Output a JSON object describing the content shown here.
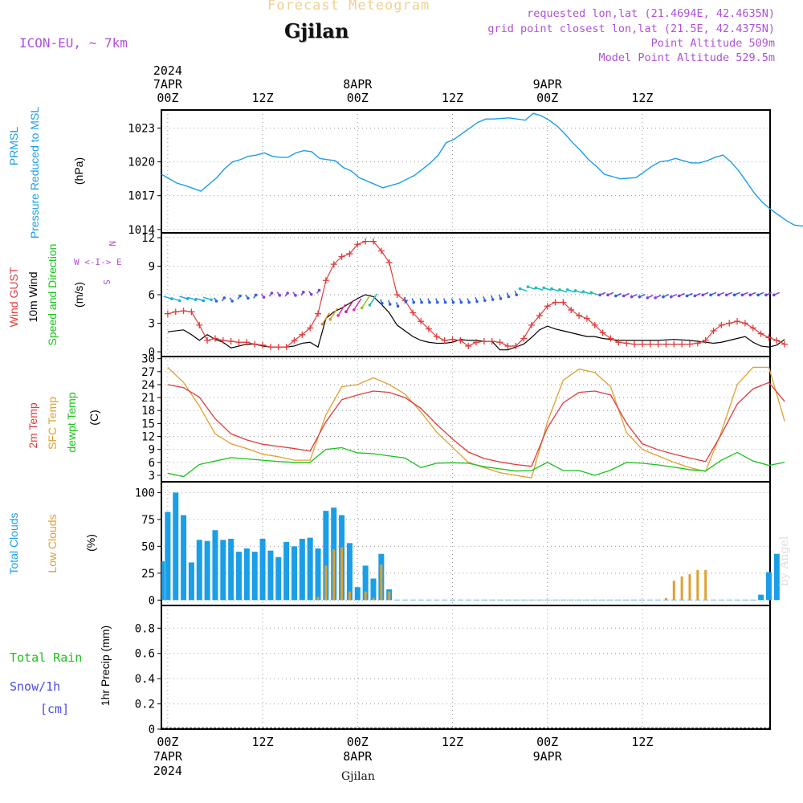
{
  "header": {
    "product": "Forecast Meteogram",
    "location": "Gjilan",
    "model": "ICON-EU, ~ 7km",
    "requested": "requested lon,lat (21.4694E, 42.4635N)",
    "gridpoint": "grid point closest lon,lat (21.5E, 42.4375N)",
    "point_alt": "Point Altitude 509m",
    "model_alt": "Model Point Altitude 529.5m",
    "footer_location": "Gjilan",
    "credit": "by Angel"
  },
  "colors": {
    "blue": "#1a9ee8",
    "red": "#e23b3b",
    "orange": "#e0a030",
    "green": "#19c219",
    "purple": "#b050d8",
    "snowblue": "#4a4ae8",
    "black": "#000000"
  },
  "chart_data": [
    {
      "type": "line",
      "title": "PRMSL Pressure Reduced to MSL",
      "ylabel": "(hPa)",
      "side_labels": [
        "PRMSL",
        "Pressure Reduced to MSL"
      ],
      "ylim": [
        1013.7,
        1024.6
      ],
      "yticks": [
        1014,
        1017,
        1020,
        1023
      ],
      "x_hours": [
        0,
        2,
        3,
        5,
        7,
        8,
        9,
        10,
        11,
        12,
        13,
        14,
        15,
        16,
        17,
        18,
        19,
        20,
        21,
        22,
        23,
        24,
        25,
        26,
        28,
        30,
        32,
        34,
        35,
        36,
        37,
        38,
        39,
        40,
        41,
        42,
        44,
        46,
        47,
        48,
        49,
        50,
        51,
        52,
        53,
        54,
        55,
        56,
        58,
        60,
        62,
        63,
        64,
        65,
        66,
        67,
        68,
        69,
        70,
        71,
        72,
        73,
        74,
        75,
        76,
        77
      ],
      "values": [
        1018.9,
        1018.1,
        1017.9,
        1017.4,
        1018.6,
        1019.4,
        1020.0,
        1020.2,
        1020.5,
        1020.6,
        1020.8,
        1020.5,
        1020.4,
        1020.4,
        1020.8,
        1021.0,
        1020.9,
        1020.3,
        1020.2,
        1020.1,
        1019.5,
        1019.2,
        1018.6,
        1018.3,
        1017.7,
        1018.1,
        1018.8,
        1019.9,
        1020.6,
        1021.7,
        1022.0,
        1022.5,
        1023.0,
        1023.5,
        1023.8,
        1023.8,
        1023.9,
        1023.7,
        1024.3,
        1024.1,
        1023.7,
        1023.2,
        1022.5,
        1021.7,
        1021.0,
        1020.2,
        1019.6,
        1018.9,
        1018.5,
        1018.6,
        1019.6,
        1020.0,
        1020.1,
        1020.3,
        1020.1,
        1019.9,
        1019.9,
        1020.1,
        1020.4,
        1020.6,
        1020.0,
        1019.2,
        1018.2,
        1017.2,
        1016.4,
        1015.8
      ],
      "tail": [
        1015.3,
        1014.8,
        1014.4,
        1014.3,
        1014.5
      ]
    },
    {
      "type": "line",
      "title": "Wind GUST / 10m Wind Speed and Direction",
      "ylabel": "(m/s)",
      "side_labels": [
        "Wind GUST",
        "10m Wind",
        "Speed and Direction"
      ],
      "compass": [
        "N",
        "W <-I-> E",
        "S"
      ],
      "ylim": [
        -0.5,
        12.5
      ],
      "yticks": [
        0,
        3,
        6,
        9,
        12
      ],
      "gust_hours": [
        0,
        1,
        2,
        3,
        4,
        5,
        6,
        7,
        8,
        9,
        10,
        11,
        12,
        13,
        14,
        15,
        16,
        17,
        18,
        19,
        20,
        21,
        22,
        23,
        24,
        25,
        26,
        27,
        28,
        29,
        30,
        31,
        32,
        33,
        34,
        35,
        36,
        37,
        38,
        39,
        40,
        41,
        42,
        43,
        44,
        45,
        46,
        47,
        48,
        49,
        50,
        51,
        52,
        53,
        54,
        55,
        56,
        57,
        58,
        59,
        60,
        61,
        62,
        63,
        64,
        65,
        66,
        67,
        68,
        69,
        70,
        71,
        72,
        73,
        74,
        75,
        76,
        77,
        78
      ],
      "gust": [
        4.0,
        4.2,
        4.3,
        4.2,
        2.8,
        1.2,
        1.4,
        1.2,
        1.1,
        1.0,
        1.0,
        0.8,
        0.7,
        0.5,
        0.5,
        0.5,
        1.2,
        1.8,
        2.5,
        4.0,
        7.5,
        9.2,
        10.0,
        10.3,
        11.3,
        11.6,
        11.6,
        10.6,
        9.4,
        6.0,
        5.4,
        4.1,
        3.2,
        2.4,
        1.6,
        1.2,
        1.3,
        1.2,
        0.6,
        1.0,
        1.1,
        1.1,
        1.0,
        0.6,
        0.6,
        1.4,
        2.8,
        3.8,
        4.8,
        5.2,
        5.2,
        4.4,
        3.8,
        3.5,
        2.8,
        2.0,
        1.4,
        1.0,
        0.9,
        0.8,
        0.8,
        0.8,
        0.8,
        0.8,
        0.8,
        0.8,
        0.8,
        0.9,
        1.2,
        2.2,
        2.8,
        3.0,
        3.2,
        3.0,
        2.5,
        1.9,
        1.5,
        1.2,
        0.8
      ],
      "wind_hours": [
        0,
        2,
        3,
        4,
        5,
        6,
        7,
        8,
        9,
        10,
        11,
        12,
        13,
        14,
        15,
        16,
        17,
        18,
        19,
        20,
        21,
        22,
        23,
        24,
        25,
        26,
        27,
        28,
        29,
        30,
        31,
        32,
        33,
        34,
        35,
        36,
        37,
        38,
        39,
        40,
        41,
        42,
        43,
        44,
        45,
        46,
        47,
        48,
        49,
        50,
        51,
        52,
        53,
        54,
        55,
        56,
        57,
        58,
        60,
        62,
        64,
        66,
        68,
        69,
        70,
        71,
        72,
        73,
        74,
        75,
        76,
        77,
        78
      ],
      "wind": [
        2.1,
        2.3,
        1.8,
        1.2,
        1.8,
        1.3,
        1.0,
        0.4,
        0.6,
        0.8,
        0.8,
        0.6,
        0.5,
        0.5,
        0.5,
        0.6,
        0.9,
        1.0,
        0.5,
        3.5,
        4.2,
        4.6,
        5.1,
        5.6,
        6.0,
        5.8,
        5.0,
        4.1,
        2.8,
        2.2,
        1.6,
        1.2,
        1.0,
        0.9,
        0.9,
        1.0,
        1.3,
        1.2,
        1.2,
        1.1,
        1.1,
        0.2,
        0.2,
        0.5,
        0.8,
        1.5,
        2.3,
        2.7,
        2.4,
        2.2,
        2.0,
        1.8,
        1.6,
        1.6,
        1.4,
        1.3,
        1.2,
        1.2,
        1.2,
        1.2,
        1.3,
        1.2,
        1.0,
        0.9,
        1.0,
        1.2,
        1.4,
        1.6,
        1.0,
        0.6,
        0.5,
        0.7,
        1.3
      ],
      "arrow_speed": [
        5.7,
        5.5,
        5.7,
        5.6,
        5.5,
        5.6,
        5.5,
        5.5,
        5.5,
        5.7,
        5.8,
        5.8,
        5.9,
        6.0,
        6.1,
        6.0,
        6.1,
        6.1,
        6.2,
        6.3,
        3.5,
        4.0,
        4.4,
        4.8,
        5.0,
        5.2,
        5.5,
        5.3,
        5.2,
        5.0,
        5.5,
        5.4,
        5.4,
        5.4,
        5.4,
        5.4,
        5.4,
        5.4,
        5.4,
        5.5,
        5.6,
        5.7,
        5.8,
        6.0,
        6.2,
        6.5,
        6.7,
        6.6,
        6.6,
        6.5,
        6.4,
        6.4,
        6.3,
        6.2,
        6.1,
        6.1,
        6.1,
        6.0,
        6.0,
        5.9,
        5.9,
        5.8,
        5.8,
        5.9,
        5.9,
        6.0,
        6.0,
        6.0,
        6.1,
        6.1,
        6.1,
        6.1,
        6.1,
        6.1,
        6.1,
        6.1,
        6.1,
        6.1
      ]
    },
    {
      "type": "line",
      "title": "2m Temp / SFC Temp / dewpt Temp",
      "ylabel": "(C)",
      "side_labels": [
        "2m Temp",
        "SFC Temp",
        "dewpt Temp"
      ],
      "ylim": [
        1.5,
        30.5
      ],
      "yticks": [
        3,
        6,
        9,
        12,
        15,
        18,
        21,
        24,
        27,
        30
      ],
      "x_hours": [
        0,
        2,
        4,
        6,
        8,
        10,
        12,
        14,
        16,
        18,
        20,
        22,
        24,
        26,
        28,
        30,
        32,
        34,
        36,
        38,
        40,
        42,
        44,
        46,
        48,
        50,
        52,
        54,
        56,
        58,
        60,
        62,
        64,
        66,
        68,
        70,
        72,
        74,
        76,
        78
      ],
      "t2m": [
        24.0,
        23.3,
        21.1,
        16.1,
        12.6,
        11.2,
        10.2,
        9.7,
        9.2,
        8.6,
        15.4,
        20.5,
        21.6,
        22.5,
        22.2,
        21.0,
        18.5,
        14.8,
        11.4,
        8.4,
        6.9,
        6.1,
        5.5,
        5.1,
        14.0,
        19.8,
        22.2,
        22.5,
        21.6,
        15.1,
        10.3,
        8.9,
        7.9,
        7.0,
        6.2,
        12.5,
        19.5,
        23.0,
        24.5,
        20.1
      ],
      "tsfc": [
        28.0,
        24.5,
        19.0,
        12.6,
        10.3,
        9.2,
        7.9,
        7.3,
        6.5,
        6.5,
        17.0,
        23.5,
        24.0,
        25.6,
        24.0,
        21.8,
        17.7,
        13.0,
        9.5,
        6.0,
        4.8,
        3.6,
        3.0,
        2.4,
        15.3,
        25.0,
        27.6,
        26.8,
        23.5,
        12.9,
        9.0,
        7.5,
        6.0,
        4.8,
        3.9,
        13.1,
        24.0,
        28.0,
        28.0,
        15.5
      ],
      "tdew": [
        3.5,
        2.7,
        5.5,
        6.3,
        7.1,
        6.8,
        6.5,
        6.2,
        6.0,
        6.0,
        9.0,
        9.4,
        8.2,
        8.0,
        7.5,
        7.0,
        4.8,
        5.8,
        5.9,
        5.8,
        5.0,
        4.5,
        4.0,
        4.1,
        6.0,
        4.1,
        4.1,
        3.0,
        4.2,
        6.0,
        5.8,
        5.4,
        4.9,
        4.3,
        4.0,
        6.5,
        8.3,
        6.3,
        5.3,
        6.0
      ]
    },
    {
      "type": "bar",
      "title": "Total Clouds / Low Clouds",
      "ylabel": "(%)",
      "side_labels": [
        "Total Clouds",
        "Low Clouds"
      ],
      "ylim": [
        -5,
        110
      ],
      "yticks": [
        0,
        25,
        50,
        75,
        100
      ],
      "start_hour": 1,
      "total": [
        82,
        100,
        79,
        35,
        56,
        55,
        65,
        56,
        57,
        45,
        48,
        45,
        57,
        46,
        40,
        54,
        50,
        57,
        58,
        48,
        83,
        86,
        79,
        53,
        12,
        32,
        20,
        43,
        10,
        0,
        0,
        0,
        0,
        0,
        0,
        0,
        0,
        0,
        0,
        0,
        0,
        0,
        0,
        0,
        0,
        0,
        0,
        0,
        0,
        0,
        0,
        0,
        0,
        0,
        0,
        0,
        0,
        0,
        0,
        0,
        0,
        0,
        0,
        0,
        0,
        0,
        0,
        0,
        0,
        0,
        0,
        0,
        0,
        0,
        0,
        5,
        26,
        43
      ],
      "low": [
        0,
        0,
        0,
        0,
        0,
        0,
        0,
        0,
        0,
        0,
        0,
        0,
        0,
        0,
        0,
        0,
        0,
        0,
        0,
        3,
        32,
        47,
        49,
        8,
        0,
        8,
        2,
        33,
        8,
        0,
        0,
        0,
        0,
        0,
        0,
        0,
        0,
        0,
        0,
        0,
        0,
        0,
        0,
        0,
        0,
        0,
        0,
        0,
        0,
        0,
        0,
        0,
        0,
        0,
        0,
        0,
        0,
        0,
        0,
        0,
        0,
        0,
        0,
        2,
        18,
        22,
        24,
        28,
        28,
        0,
        0,
        0,
        0,
        0,
        0,
        0,
        0,
        0
      ]
    },
    {
      "type": "bar",
      "title": "1hr Precip",
      "ylabel": "1hr Precip (mm)",
      "side_labels": [
        "Total  Rain",
        "Snow/1h",
        "[cm]"
      ],
      "ylim": [
        0,
        0.98
      ],
      "yticks": [
        "0",
        "0.2",
        "0.4",
        "0.6",
        "0.8"
      ],
      "values": []
    }
  ],
  "time_axis": {
    "top": [
      {
        "hour": 0,
        "lines": [
          "2024",
          "7APR",
          "00Z"
        ]
      },
      {
        "hour": 12,
        "lines": [
          "12Z"
        ]
      },
      {
        "hour": 24,
        "lines": [
          "8APR",
          "00Z"
        ]
      },
      {
        "hour": 36,
        "lines": [
          "12Z"
        ]
      },
      {
        "hour": 48,
        "lines": [
          "9APR",
          "00Z"
        ]
      },
      {
        "hour": 60,
        "lines": [
          "12Z"
        ]
      }
    ],
    "bottom": [
      {
        "hour": 0,
        "lines": [
          "00Z",
          "7APR",
          "2024"
        ]
      },
      {
        "hour": 12,
        "lines": [
          "12Z"
        ]
      },
      {
        "hour": 24,
        "lines": [
          "00Z",
          "8APR"
        ]
      },
      {
        "hour": 36,
        "lines": [
          "12Z"
        ]
      },
      {
        "hour": 48,
        "lines": [
          "00Z",
          "9APR"
        ]
      },
      {
        "hour": 60,
        "lines": [
          "12Z"
        ]
      }
    ]
  }
}
